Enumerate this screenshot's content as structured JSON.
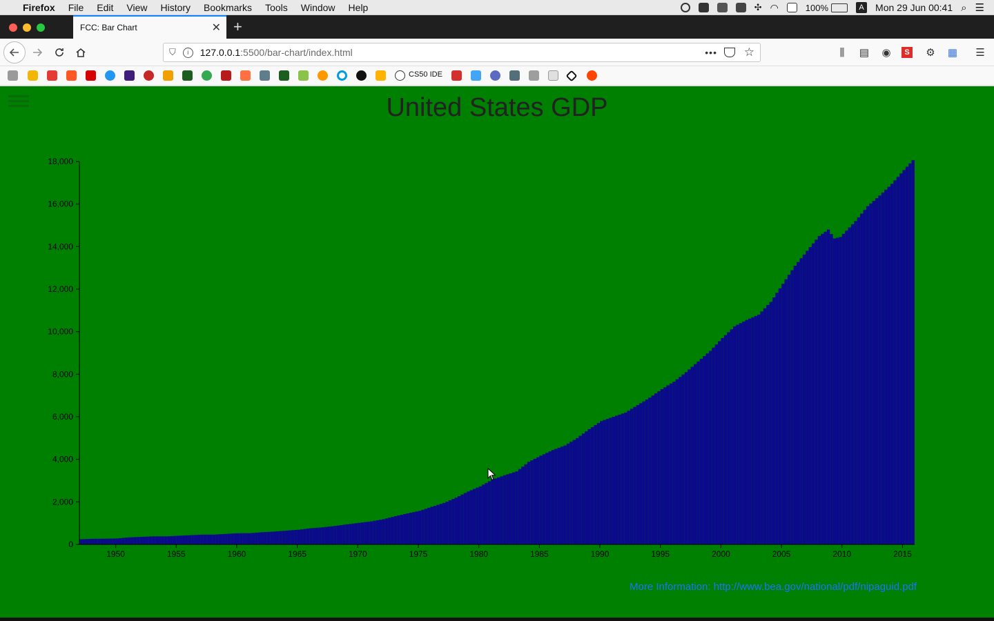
{
  "menubar": {
    "app_name": "Firefox",
    "menus": [
      "File",
      "Edit",
      "View",
      "History",
      "Bookmarks",
      "Tools",
      "Window",
      "Help"
    ],
    "battery": "100%",
    "input_source": "A",
    "datetime": "Mon 29 Jun  00:41"
  },
  "tab": {
    "title": "FCC: Bar Chart",
    "close": "✕",
    "new_tab": "+"
  },
  "urlbar": {
    "host": "127.0.0.1",
    "path": ":5500/bar-chart/index.html"
  },
  "bookmarks": {
    "cs50_label": "CS50 IDE"
  },
  "page": {
    "title": "United States GDP",
    "more_info": "More Information: http://www.bea.gov/national/pdf/nipaguid.pdf",
    "background_color": "#008000",
    "bar_color": "#0a0a8a"
  },
  "chart_data": {
    "type": "bar",
    "title": "United States GDP",
    "xlabel": "",
    "ylabel": "",
    "ylim": [
      0,
      18000
    ],
    "xlim": [
      1947,
      2015.75
    ],
    "yticks": [
      "0",
      "2,000",
      "4,000",
      "6,000",
      "8,000",
      "10,000",
      "12,000",
      "14,000",
      "16,000",
      "18,000"
    ],
    "ytick_values": [
      0,
      2000,
      4000,
      6000,
      8000,
      10000,
      12000,
      14000,
      16000,
      18000
    ],
    "xticks": [
      "1950",
      "1955",
      "1960",
      "1965",
      "1970",
      "1975",
      "1980",
      "1985",
      "1990",
      "1995",
      "2000",
      "2005",
      "2010",
      "2015"
    ],
    "xtick_values": [
      1950,
      1955,
      1960,
      1965,
      1970,
      1975,
      1980,
      1985,
      1990,
      1995,
      2000,
      2005,
      2010,
      2015
    ],
    "grid": false,
    "series": [
      {
        "values": [
          [
            1947,
            243
          ],
          [
            1948,
            265
          ],
          [
            1949,
            268
          ],
          [
            1950,
            280
          ],
          [
            1951,
            330
          ],
          [
            1952,
            355
          ],
          [
            1953,
            378
          ],
          [
            1954,
            378
          ],
          [
            1955,
            405
          ],
          [
            1956,
            432
          ],
          [
            1957,
            460
          ],
          [
            1958,
            462
          ],
          [
            1959,
            495
          ],
          [
            1960,
            525
          ],
          [
            1961,
            530
          ],
          [
            1962,
            575
          ],
          [
            1963,
            605
          ],
          [
            1964,
            650
          ],
          [
            1965,
            690
          ],
          [
            1966,
            760
          ],
          [
            1967,
            805
          ],
          [
            1968,
            870
          ],
          [
            1969,
            945
          ],
          [
            1970,
            1015
          ],
          [
            1971,
            1085
          ],
          [
            1972,
            1185
          ],
          [
            1973,
            1330
          ],
          [
            1974,
            1460
          ],
          [
            1975,
            1580
          ],
          [
            1976,
            1770
          ],
          [
            1977,
            1950
          ],
          [
            1978,
            2200
          ],
          [
            1979,
            2490
          ],
          [
            1980,
            2730
          ],
          [
            1981,
            3050
          ],
          [
            1982,
            3250
          ],
          [
            1983,
            3430
          ],
          [
            1984,
            3880
          ],
          [
            1985,
            4170
          ],
          [
            1986,
            4440
          ],
          [
            1987,
            4650
          ],
          [
            1988,
            5000
          ],
          [
            1989,
            5420
          ],
          [
            1990,
            5800
          ],
          [
            1991,
            6000
          ],
          [
            1992,
            6200
          ],
          [
            1993,
            6550
          ],
          [
            1994,
            6900
          ],
          [
            1995,
            7300
          ],
          [
            1996,
            7650
          ],
          [
            1997,
            8100
          ],
          [
            1998,
            8600
          ],
          [
            1999,
            9100
          ],
          [
            2000,
            9700
          ],
          [
            2001,
            10250
          ],
          [
            2002,
            10550
          ],
          [
            2003,
            10800
          ],
          [
            2004,
            11400
          ],
          [
            2005,
            12250
          ],
          [
            2006,
            13100
          ],
          [
            2007,
            13800
          ],
          [
            2008,
            14500
          ],
          [
            2008.75,
            14800
          ],
          [
            2009.25,
            14380
          ],
          [
            2009.75,
            14450
          ],
          [
            2010,
            14600
          ],
          [
            2011,
            15200
          ],
          [
            2012,
            15900
          ],
          [
            2013,
            16400
          ],
          [
            2014,
            16950
          ],
          [
            2015,
            17600
          ],
          [
            2015.75,
            18064
          ]
        ]
      }
    ]
  }
}
